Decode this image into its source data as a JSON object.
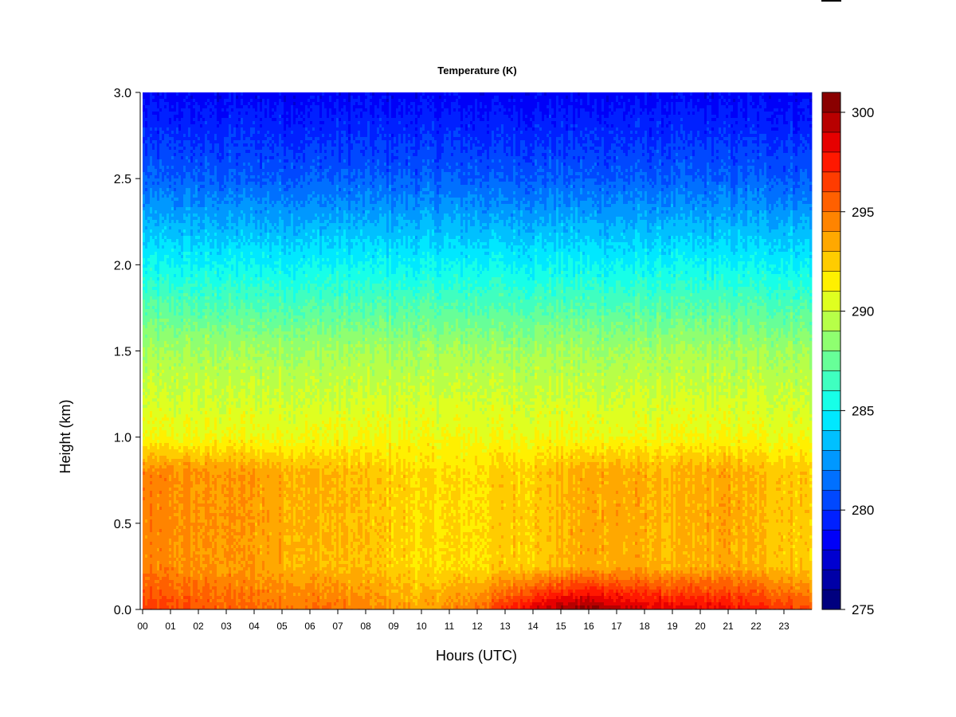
{
  "chart_data": {
    "type": "heatmap",
    "title": "Temperature (K)",
    "xlabel": "Hours (UTC)",
    "ylabel": "Height (km)",
    "xlim": [
      0,
      24
    ],
    "ylim": [
      0.0,
      3.0
    ],
    "x_ticks": [
      "00",
      "01",
      "02",
      "03",
      "04",
      "05",
      "06",
      "07",
      "08",
      "09",
      "10",
      "11",
      "12",
      "13",
      "14",
      "15",
      "16",
      "17",
      "18",
      "19",
      "20",
      "21",
      "22",
      "23"
    ],
    "y_ticks": [
      "0.0",
      "0.5",
      "1.0",
      "1.5",
      "2.0",
      "2.5",
      "3.0"
    ],
    "colorbar": {
      "range": [
        275,
        301
      ],
      "step": 1,
      "tick_values": [
        275,
        280,
        285,
        290,
        295,
        300
      ],
      "tick_labels": [
        "275",
        "280",
        "285",
        "290",
        "295",
        "300"
      ],
      "colors": [
        "#00007F",
        "#0000A7",
        "#0000D0",
        "#0000F8",
        "#0020FF",
        "#0048FF",
        "#0070FF",
        "#0098FF",
        "#00C0FF",
        "#00E8FF",
        "#17FFE8",
        "#3FFFC0",
        "#67FF98",
        "#8FFF70",
        "#B7FF48",
        "#DFFF20",
        "#FFF000",
        "#FFCC00",
        "#FFA800",
        "#FF8400",
        "#FF6000",
        "#FF3C00",
        "#FF1800",
        "#E60000",
        "#B80000",
        "#8A0000"
      ]
    },
    "profiles": [
      {
        "hour": 0,
        "t_sfc": 296.5,
        "t_ml": 294.5
      },
      {
        "hour": 2,
        "t_sfc": 296.0,
        "t_ml": 294.0
      },
      {
        "hour": 3,
        "t_sfc": 295.5,
        "t_ml": 294.0
      },
      {
        "hour": 5,
        "t_sfc": 295.0,
        "t_ml": 293.5
      },
      {
        "hour": 7,
        "t_sfc": 295.0,
        "t_ml": 293.0
      },
      {
        "hour": 9,
        "t_sfc": 294.0,
        "t_ml": 292.5
      },
      {
        "hour": 10,
        "t_sfc": 293.5,
        "t_ml": 292.0
      },
      {
        "hour": 12,
        "t_sfc": 295.0,
        "t_ml": 292.0
      },
      {
        "hour": 13,
        "t_sfc": 297.0,
        "t_ml": 292.5
      },
      {
        "hour": 14,
        "t_sfc": 299.0,
        "t_ml": 292.5
      },
      {
        "hour": 16,
        "t_sfc": 300.5,
        "t_ml": 293.5
      },
      {
        "hour": 17,
        "t_sfc": 299.5,
        "t_ml": 293.5
      },
      {
        "hour": 19,
        "t_sfc": 298.5,
        "t_ml": 293.0
      },
      {
        "hour": 21,
        "t_sfc": 298.0,
        "t_ml": 293.5
      },
      {
        "hour": 22,
        "t_sfc": 297.5,
        "t_ml": 293.0
      },
      {
        "hour": 24,
        "t_sfc": 296.0,
        "t_ml": 292.5
      }
    ],
    "upper_profile": [
      {
        "height_km": 1.0,
        "temp_k": 291.0
      },
      {
        "height_km": 1.5,
        "temp_k": 289.0
      },
      {
        "height_km": 2.0,
        "temp_k": 285.0
      },
      {
        "height_km": 2.5,
        "temp_k": 281.0
      },
      {
        "height_km": 3.0,
        "temp_k": 278.5
      }
    ]
  }
}
